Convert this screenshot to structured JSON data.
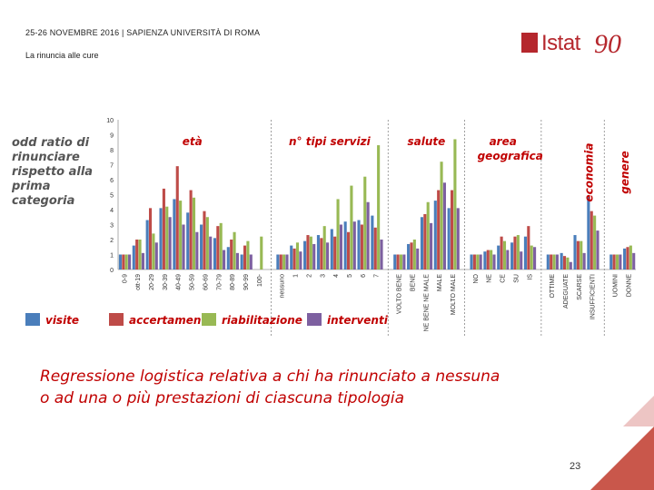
{
  "header": {
    "event_line": "25-26 NOVEMBRE 2016 | SAPIENZA UNIVERSITÀ DI ROMA",
    "section": "La rinuncia alle cure"
  },
  "logo": {
    "text": "Istat",
    "ninety": "90",
    "brand_color": "#b5272d"
  },
  "caption": {
    "line1": "Regressione logistica relativa a chi ha rinunciato a nessuna",
    "line2": "o ad una o più prestazioni di ciascuna tipologia"
  },
  "page_number": "23",
  "chart_data": {
    "type": "bar",
    "ylabel_lines": [
      "odd ratio di",
      "rinunciare",
      "rispetto alla",
      "prima",
      "categoria"
    ],
    "ylim": [
      0,
      10
    ],
    "yticks": [
      "0",
      "1",
      "2",
      "3",
      "4",
      "5",
      "6",
      "7",
      "8",
      "9",
      "10"
    ],
    "legend_position": "bottom",
    "series": [
      {
        "name": "visite",
        "color": "#4a7ebb"
      },
      {
        "name": "accertamenti",
        "color": "#be4b48"
      },
      {
        "name": "riabilitazione",
        "color": "#98b954"
      },
      {
        "name": "interventi",
        "color": "#7d60a0"
      }
    ],
    "group_labels": [
      {
        "text": "età",
        "group_index": 0
      },
      {
        "text": "n° tipi servizi",
        "group_index": 1
      },
      {
        "text": "salute",
        "group_index": 2
      },
      {
        "text": "area geografica",
        "group_index": 3
      },
      {
        "text": "economia",
        "group_index": 4
      },
      {
        "text": "genere",
        "group_index": 5
      }
    ],
    "groups": [
      {
        "categories": [
          {
            "label": "0-9",
            "values": [
              1,
              1,
              1,
              1
            ]
          },
          {
            "label": "ott-19",
            "values": [
              1.6,
              2,
              2,
              1.1
            ]
          },
          {
            "label": "20-29",
            "values": [
              3.3,
              4.1,
              2.4,
              1.8
            ]
          },
          {
            "label": "30-39",
            "values": [
              4.1,
              5.4,
              4.2,
              3.5
            ]
          },
          {
            "label": "40-49",
            "values": [
              4.7,
              6.9,
              4.6,
              3
            ]
          },
          {
            "label": "50-59",
            "values": [
              3.8,
              5.3,
              4.8,
              2.5
            ]
          },
          {
            "label": "60-69",
            "values": [
              3,
              3.9,
              3.5,
              2.2
            ]
          },
          {
            "label": "70-79",
            "values": [
              2.1,
              2.9,
              3.1,
              1.3
            ]
          },
          {
            "label": "80-89",
            "values": [
              1.5,
              2,
              2.5,
              1.1
            ]
          },
          {
            "label": "90-99",
            "values": [
              1,
              1.6,
              1.9,
              1
            ]
          },
          {
            "label": "100-",
            "values": [
              0,
              0,
              2.2,
              0
            ]
          }
        ]
      },
      {
        "categories": [
          {
            "label": "nessuno",
            "values": [
              1,
              1,
              1,
              1
            ]
          },
          {
            "label": "1",
            "values": [
              1.6,
              1.4,
              1.8,
              1.2
            ]
          },
          {
            "label": "2",
            "values": [
              1.9,
              2.3,
              2.2,
              1.7
            ]
          },
          {
            "label": "3",
            "values": [
              2.3,
              2.1,
              2.9,
              1.8
            ]
          },
          {
            "label": "4",
            "values": [
              2.7,
              2.2,
              4.7,
              3
            ]
          },
          {
            "label": "5",
            "values": [
              3.2,
              2.5,
              5.6,
              3.2
            ]
          },
          {
            "label": "6",
            "values": [
              3.3,
              3,
              6.2,
              4.5
            ]
          },
          {
            "label": "7",
            "values": [
              3.6,
              2.8,
              8.3,
              2
            ]
          }
        ]
      },
      {
        "categories": [
          {
            "label": "VOLTO BENE",
            "values": [
              1,
              1,
              1,
              1
            ]
          },
          {
            "label": "BENE",
            "values": [
              1.7,
              1.8,
              2,
              1.4
            ]
          },
          {
            "label": "NE BENE NE MALE",
            "values": [
              3.5,
              3.7,
              4.5,
              3.1
            ]
          },
          {
            "label": "MALE",
            "values": [
              4.6,
              5.3,
              7.2,
              5.8
            ]
          },
          {
            "label": "MOLTO MALE",
            "values": [
              4.1,
              5.3,
              8.7,
              4.1
            ]
          }
        ]
      },
      {
        "categories": [
          {
            "label": "NO",
            "values": [
              1,
              1,
              1,
              1
            ]
          },
          {
            "label": "NE",
            "values": [
              1.2,
              1.3,
              1.3,
              1
            ]
          },
          {
            "label": "CE",
            "values": [
              1.6,
              2.2,
              1.9,
              1.3
            ]
          },
          {
            "label": "SU",
            "values": [
              1.8,
              2.2,
              2.3,
              1.2
            ]
          },
          {
            "label": "IS",
            "values": [
              2.2,
              2.9,
              1.6,
              1.5
            ]
          }
        ]
      },
      {
        "categories": [
          {
            "label": "OTTIME",
            "values": [
              1,
              1,
              1,
              1
            ]
          },
          {
            "label": "ADEGUATE",
            "values": [
              1.1,
              0.9,
              0.8,
              0.5
            ]
          },
          {
            "label": "SCARSE",
            "values": [
              2.3,
              1.9,
              1.9,
              1.1
            ]
          },
          {
            "label": "INSUFFICIENTI",
            "values": [
              4.9,
              3.9,
              3.6,
              2.6
            ]
          }
        ]
      },
      {
        "categories": [
          {
            "label": "UOMINI",
            "values": [
              1,
              1,
              1,
              1
            ]
          },
          {
            "label": "DONNE",
            "values": [
              1.4,
              1.5,
              1.6,
              1.1
            ]
          }
        ]
      }
    ]
  }
}
